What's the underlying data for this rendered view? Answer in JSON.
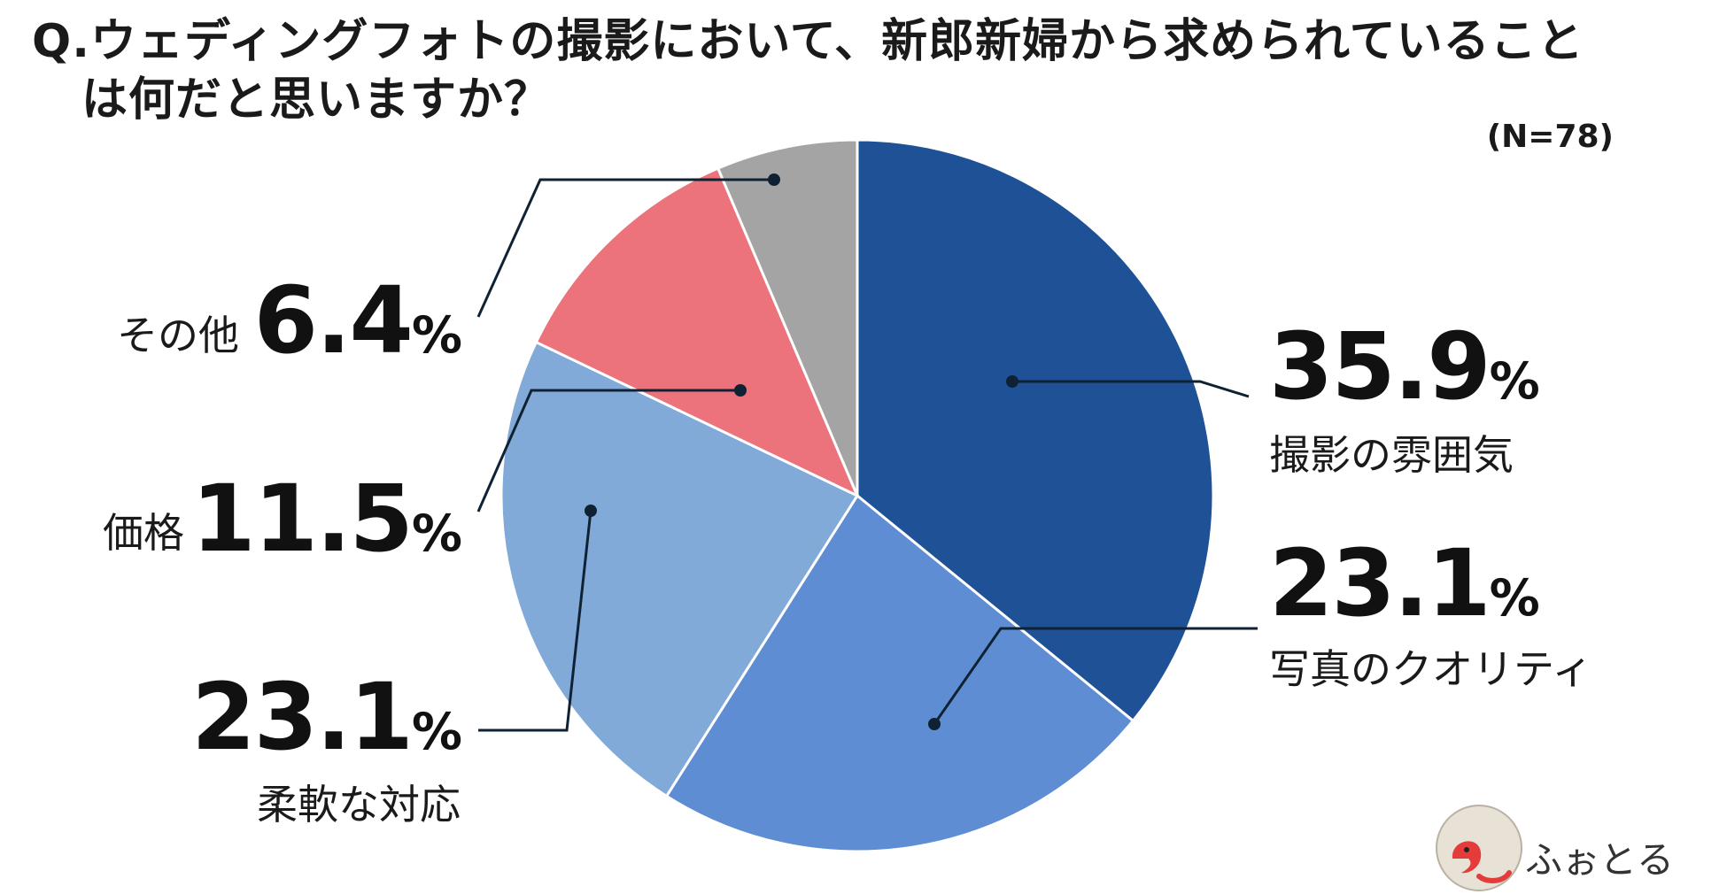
{
  "title": {
    "line1": "Q.ウェディングフォトの撮影において、新郎新婦から求められていること",
    "line2": "は何だと思いますか？"
  },
  "sample_size": "(N=78)",
  "chart_data": {
    "type": "pie",
    "slices": [
      {
        "label": "撮影の雰囲気",
        "value": 35.9,
        "display": "35.9",
        "color": "#1e5195"
      },
      {
        "label": "写真のクオリティ",
        "value": 23.1,
        "display": "23.1",
        "color": "#5e8dd4"
      },
      {
        "label": "柔軟な対応",
        "value": 23.1,
        "display": "23.1",
        "color": "#82aad8"
      },
      {
        "label": "価格",
        "value": 11.5,
        "display": "11.5",
        "color": "#ec727b"
      },
      {
        "label": "その他",
        "value": 6.4,
        "display": "6.4",
        "color": "#a4a4a4"
      }
    ],
    "unit": "%",
    "start_angle": "12 o'clock",
    "direction": "clockwise"
  },
  "logo": {
    "text": "ふぉとる"
  }
}
